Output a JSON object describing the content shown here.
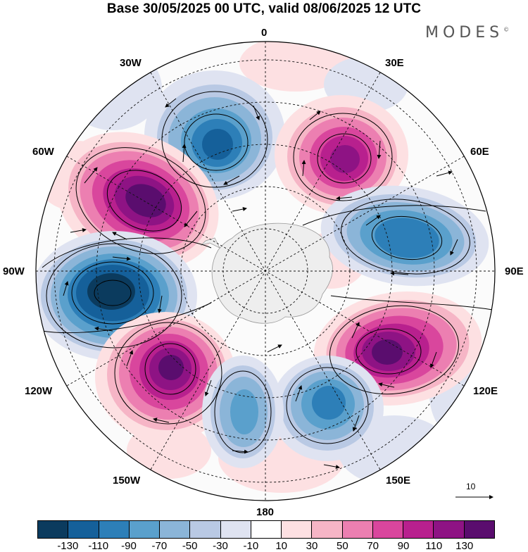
{
  "title": "Base 30/05/2025 00 UTC, valid 08/06/2025 12 UTC",
  "brand": "MODES",
  "brand_mark": "©",
  "longitude_labels": {
    "lon_0": "0",
    "lon_30e": "30E",
    "lon_60e": "60E",
    "lon_90e": "90E",
    "lon_120e": "120E",
    "lon_150e": "150E",
    "lon_180": "180",
    "lon_150w": "150W",
    "lon_120w": "120W",
    "lon_90w": "90W",
    "lon_60w": "60W",
    "lon_30w": "30W"
  },
  "vector_reference": "10",
  "colorbar": {
    "colors": [
      "#0b3b5e",
      "#15609a",
      "#2d7fb8",
      "#5aa0cc",
      "#8bb5d8",
      "#b9c9e4",
      "#dfe3f1",
      "#ffffff",
      "#fde0e2",
      "#f6b5c6",
      "#ec7fb1",
      "#d9469d",
      "#b8208e",
      "#8e1384",
      "#5a0d6e"
    ],
    "ticks": [
      "-130",
      "-110",
      "-90",
      "-70",
      "-50",
      "-30",
      "-10",
      "10",
      "30",
      "50",
      "70",
      "90",
      "110",
      "130"
    ]
  },
  "anomaly_centers": [
    {
      "name": "low-30w",
      "sign": "negative",
      "level": "-110"
    },
    {
      "name": "high-40e",
      "sign": "positive",
      "level": "110"
    },
    {
      "name": "high-60w",
      "sign": "positive",
      "level": "130"
    },
    {
      "name": "low-80e",
      "sign": "negative",
      "level": "-90"
    },
    {
      "name": "low-90w",
      "sign": "negative",
      "level": "-130"
    },
    {
      "name": "high-115e",
      "sign": "positive",
      "level": "130"
    },
    {
      "name": "high-130w",
      "sign": "positive",
      "level": "130"
    },
    {
      "name": "low-150e",
      "sign": "negative",
      "level": "-90"
    },
    {
      "name": "low-170w",
      "sign": "negative",
      "level": "-70"
    }
  ]
}
